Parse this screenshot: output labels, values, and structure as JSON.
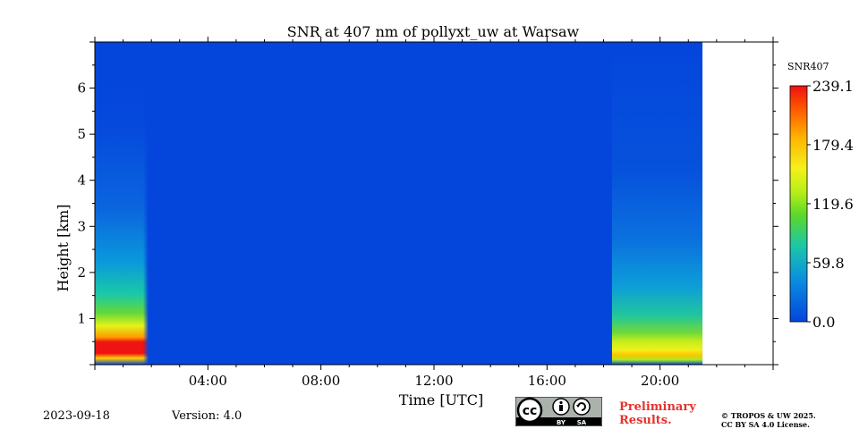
{
  "chart_data": {
    "type": "heatmap",
    "title": "SNR at 407 nm of pollyxt_uw at Warsaw",
    "xlabel": "Time [UTC]",
    "ylabel": "Height [km]",
    "xlim_hours": [
      0,
      24
    ],
    "ylim_km": [
      0,
      7
    ],
    "x_ticks": [
      {
        "value": 4,
        "label": "04:00"
      },
      {
        "value": 8,
        "label": "08:00"
      },
      {
        "value": 12,
        "label": "12:00"
      },
      {
        "value": 16,
        "label": "16:00"
      },
      {
        "value": 20,
        "label": "20:00"
      }
    ],
    "y_ticks": [
      {
        "value": 1,
        "label": "1"
      },
      {
        "value": 2,
        "label": "2"
      },
      {
        "value": 3,
        "label": "3"
      },
      {
        "value": 4,
        "label": "4"
      },
      {
        "value": 5,
        "label": "5"
      },
      {
        "value": 6,
        "label": "6"
      }
    ],
    "data_end_hours": 21.5,
    "colorbar": {
      "label": "SNR407",
      "min": 0.0,
      "max": 239.1,
      "ticks": [
        "239.1",
        "179.4",
        "119.6",
        "59.8",
        "0.0"
      ],
      "tick_values": [
        239.1,
        179.4,
        119.6,
        59.8,
        0.0
      ]
    },
    "segments": [
      {
        "start_hours": 0.0,
        "end_hours": 1.9,
        "description": "high SNR near surface (~0.2-0.5 km) up to ~239, decreasing with height"
      },
      {
        "start_hours": 1.9,
        "end_hours": 18.3,
        "description": "SNR near 0 at all heights"
      },
      {
        "start_hours": 18.3,
        "end_hours": 21.5,
        "description": "moderate SNR near surface (~0.2-0.4 km) ~150, decreasing with height"
      }
    ],
    "colors": {
      "background": "#0445dc",
      "cmap": [
        "#0445dc",
        "#0aa6d8",
        "#2fd35b",
        "#d4f21a",
        "#ffd400",
        "#ff7a00",
        "#ee1414"
      ]
    }
  },
  "footer": {
    "date": "2023-09-18",
    "version": "Version: 4.0",
    "preliminary_line1": "Preliminary",
    "preliminary_line2": "Results.",
    "copyright_line1": "© TROPOS & UW 2025.",
    "copyright_line2": "CC BY SA 4.0 License.",
    "license_badge": {
      "icon": "cc-by-sa-icon",
      "by": "BY",
      "sa": "SA",
      "cc": "cc"
    }
  }
}
